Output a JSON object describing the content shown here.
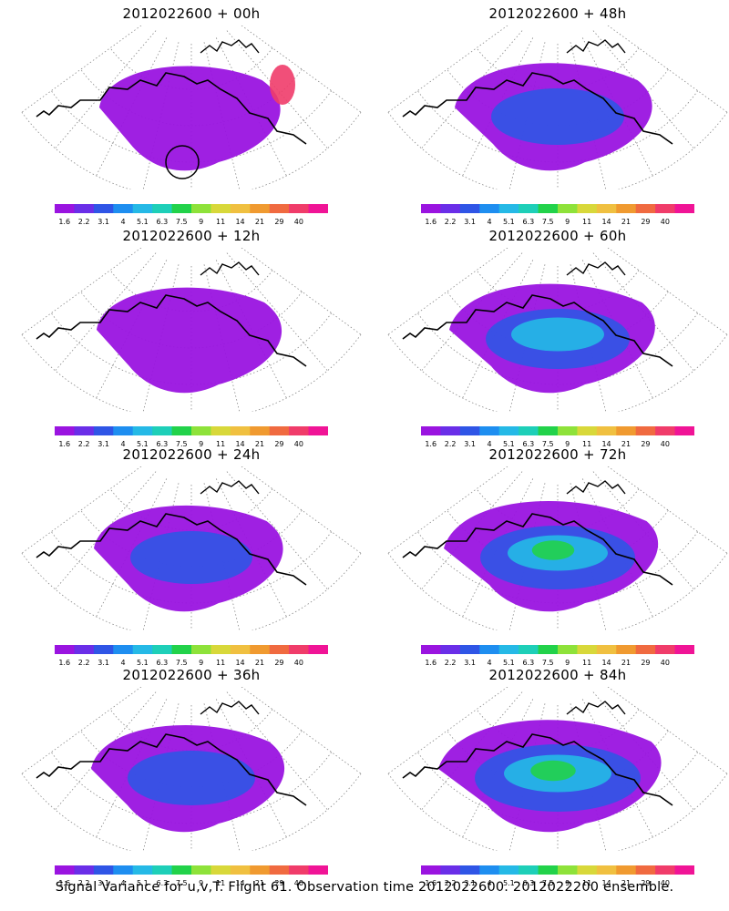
{
  "panels": [
    {
      "title": "2012022600 + 00h",
      "intensity": 0.35
    },
    {
      "title": "2012022600 + 48h",
      "intensity": 0.55
    },
    {
      "title": "2012022600 + 12h",
      "intensity": 0.4
    },
    {
      "title": "2012022600 + 60h",
      "intensity": 0.65
    },
    {
      "title": "2012022600 + 24h",
      "intensity": 0.45
    },
    {
      "title": "2012022600 + 72h",
      "intensity": 0.75
    },
    {
      "title": "2012022600 + 36h",
      "intensity": 0.5
    },
    {
      "title": "2012022600 + 84h",
      "intensity": 0.85
    }
  ],
  "colorbar": {
    "labels": [
      "1.6",
      "2.2",
      "3.1",
      "4",
      "5.1",
      "6.3",
      "7.5",
      "9",
      "11",
      "14",
      "21",
      "29",
      "40"
    ],
    "colors": [
      "#9a14e0",
      "#6a2ee8",
      "#2f55e6",
      "#1e8ef0",
      "#25b9e6",
      "#1ecfb8",
      "#22d24a",
      "#8ee23a",
      "#d8d83a",
      "#f0c040",
      "#f09a30",
      "#f06a40",
      "#f03c6a",
      "#f01496"
    ]
  },
  "footer": "Signal Variance for u,v,T. Flight 61. Observation time 2012022600. 2012022200 ensemble."
}
